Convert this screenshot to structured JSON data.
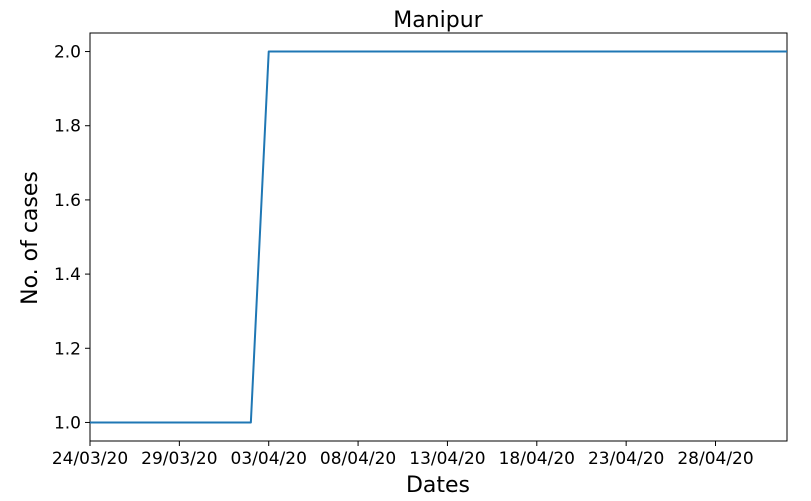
{
  "chart_data": {
    "type": "line",
    "title": "Manipur",
    "xlabel": "Dates",
    "ylabel": "No. of cases",
    "x": [
      "24/03/20",
      "25/03/20",
      "26/03/20",
      "27/03/20",
      "28/03/20",
      "29/03/20",
      "30/03/20",
      "31/03/20",
      "01/04/20",
      "02/04/20",
      "03/04/20",
      "04/04/20",
      "05/04/20",
      "06/04/20",
      "07/04/20",
      "08/04/20",
      "09/04/20",
      "10/04/20",
      "11/04/20",
      "12/04/20",
      "13/04/20",
      "14/04/20",
      "15/04/20",
      "16/04/20",
      "17/04/20",
      "18/04/20",
      "19/04/20",
      "20/04/20",
      "21/04/20",
      "22/04/20",
      "23/04/20",
      "24/04/20",
      "25/04/20",
      "26/04/20",
      "27/04/20",
      "28/04/20",
      "29/04/20",
      "30/04/20",
      "01/05/20",
      "02/05/20"
    ],
    "series": [
      {
        "values": [
          1,
          1,
          1,
          1,
          1,
          1,
          1,
          1,
          1,
          1,
          2,
          2,
          2,
          2,
          2,
          2,
          2,
          2,
          2,
          2,
          2,
          2,
          2,
          2,
          2,
          2,
          2,
          2,
          2,
          2,
          2,
          2,
          2,
          2,
          2,
          2,
          2,
          2,
          2,
          2
        ],
        "color": "#1f77b4"
      }
    ],
    "xticks": [
      "24/03/20",
      "29/03/20",
      "03/04/20",
      "08/04/20",
      "13/04/20",
      "18/04/20",
      "23/04/20",
      "28/04/20"
    ],
    "yticks": [
      "1.0",
      "1.2",
      "1.4",
      "1.6",
      "1.8",
      "2.0"
    ],
    "ylim": [
      0.95,
      2.05
    ],
    "grid": false,
    "legend": false
  }
}
